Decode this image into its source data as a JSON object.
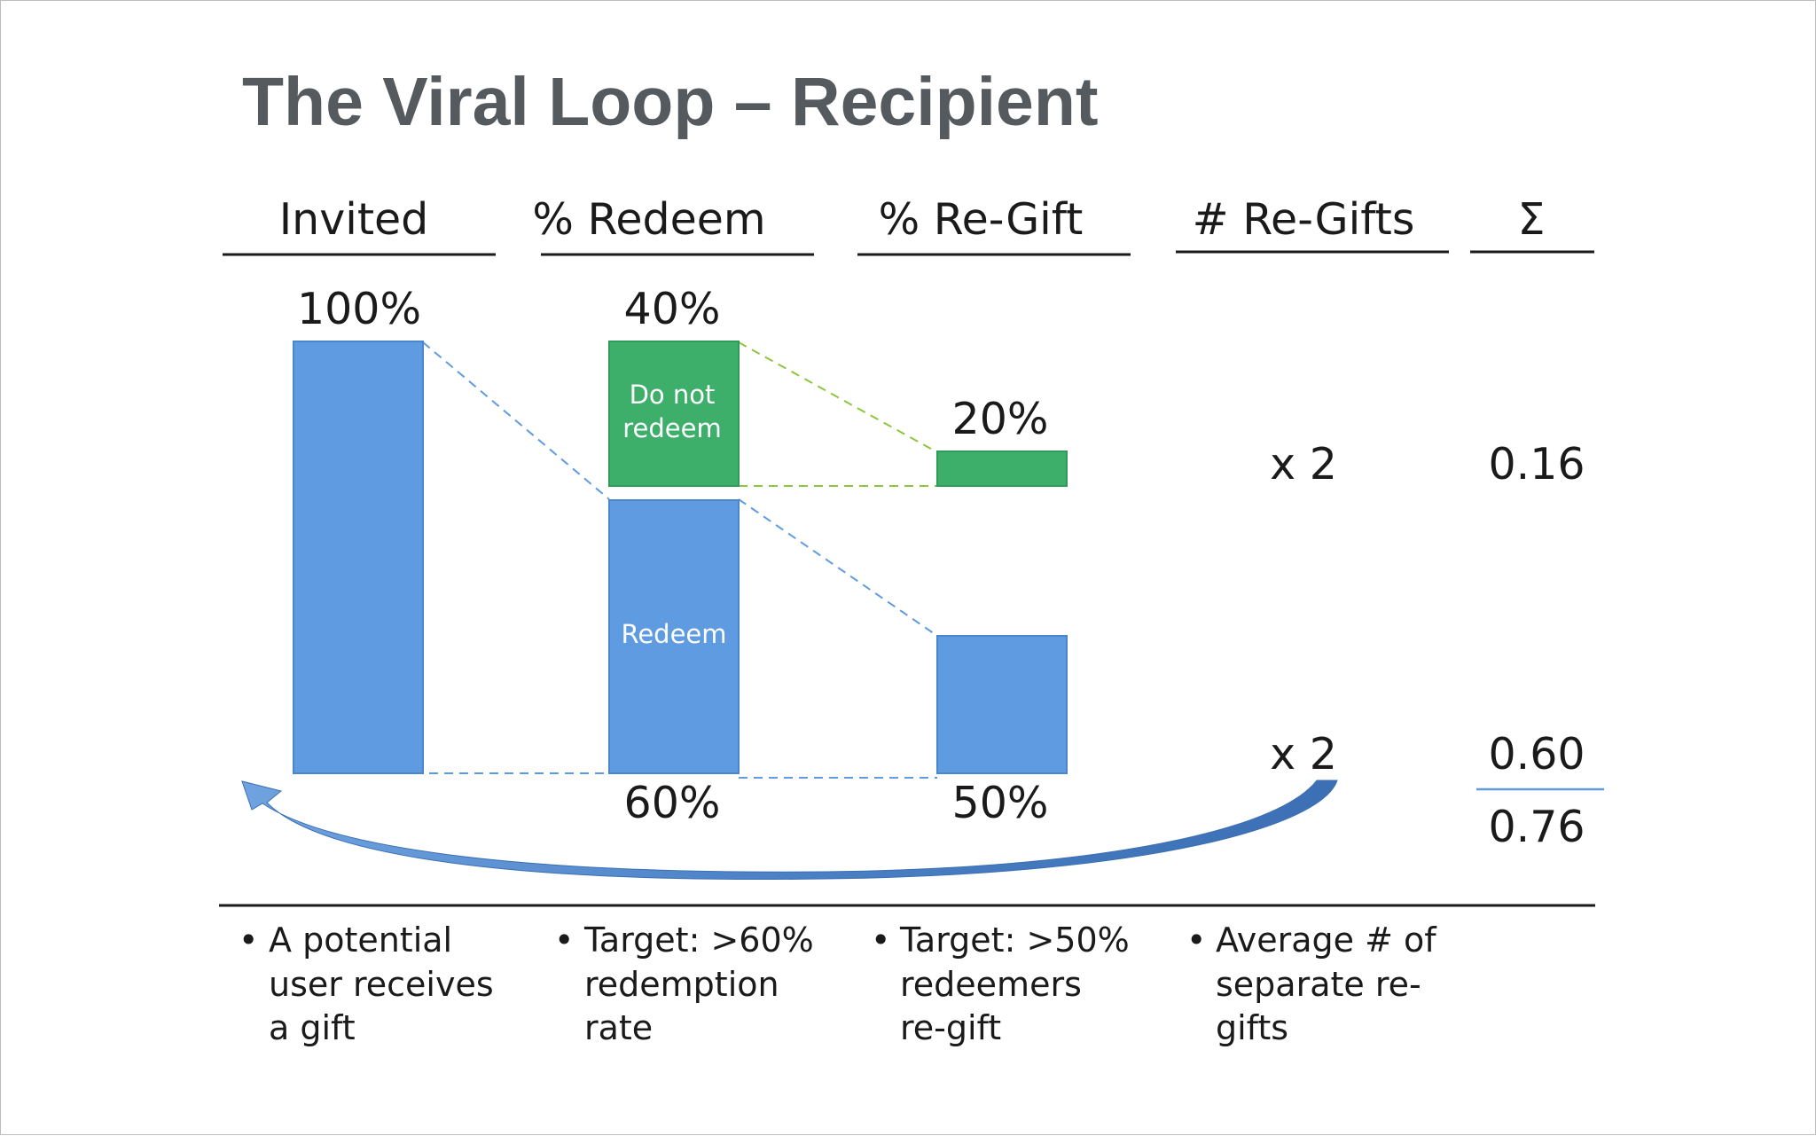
{
  "title": "The Viral Loop – Recipient",
  "columns": [
    "Invited",
    "% Redeem",
    "% Re-Gift",
    "# Re-Gifts",
    "Σ"
  ],
  "invited": {
    "value": "100%"
  },
  "redeem": {
    "top_value": "40%",
    "do_not_redeem_line1": "Do not",
    "do_not_redeem_line2": "redeem",
    "redeem_label": "Redeem",
    "bottom_value": "60%"
  },
  "regift": {
    "top_value": "20%",
    "bottom_value": "50%"
  },
  "regifts": {
    "top_multiplier": "x 2",
    "bottom_multiplier": "x 2"
  },
  "sum": {
    "top": "0.16",
    "bottom": "0.60",
    "total": "0.76"
  },
  "notes": [
    {
      "bullet": "•",
      "lines": [
        "A potential",
        "user receives",
        "a gift"
      ]
    },
    {
      "bullet": "•",
      "lines": [
        "Target: >60%",
        "redemption",
        "rate"
      ]
    },
    {
      "bullet": "•",
      "lines": [
        "Target: >50%",
        "redeemers",
        "re-gift"
      ]
    },
    {
      "bullet": "•",
      "lines": [
        "Average # of",
        "separate re-",
        "gifts"
      ]
    }
  ],
  "chart_data": {
    "type": "bar",
    "categories": [
      "Invited",
      "% Redeem",
      "% Re-Gift"
    ],
    "series": [
      {
        "name": "Do not redeem",
        "values": [
          0,
          40,
          20
        ]
      },
      {
        "name": "Redeem",
        "values": [
          100,
          60,
          50
        ]
      }
    ],
    "multipliers": [
      2,
      2
    ],
    "results": [
      0.16,
      0.6
    ],
    "total": 0.76
  },
  "colors": {
    "blue": "#5f9be0",
    "green": "#3daf6b",
    "arrow": "#4a7ec0",
    "text": "#1a1a1a",
    "title": "#555a5f"
  }
}
